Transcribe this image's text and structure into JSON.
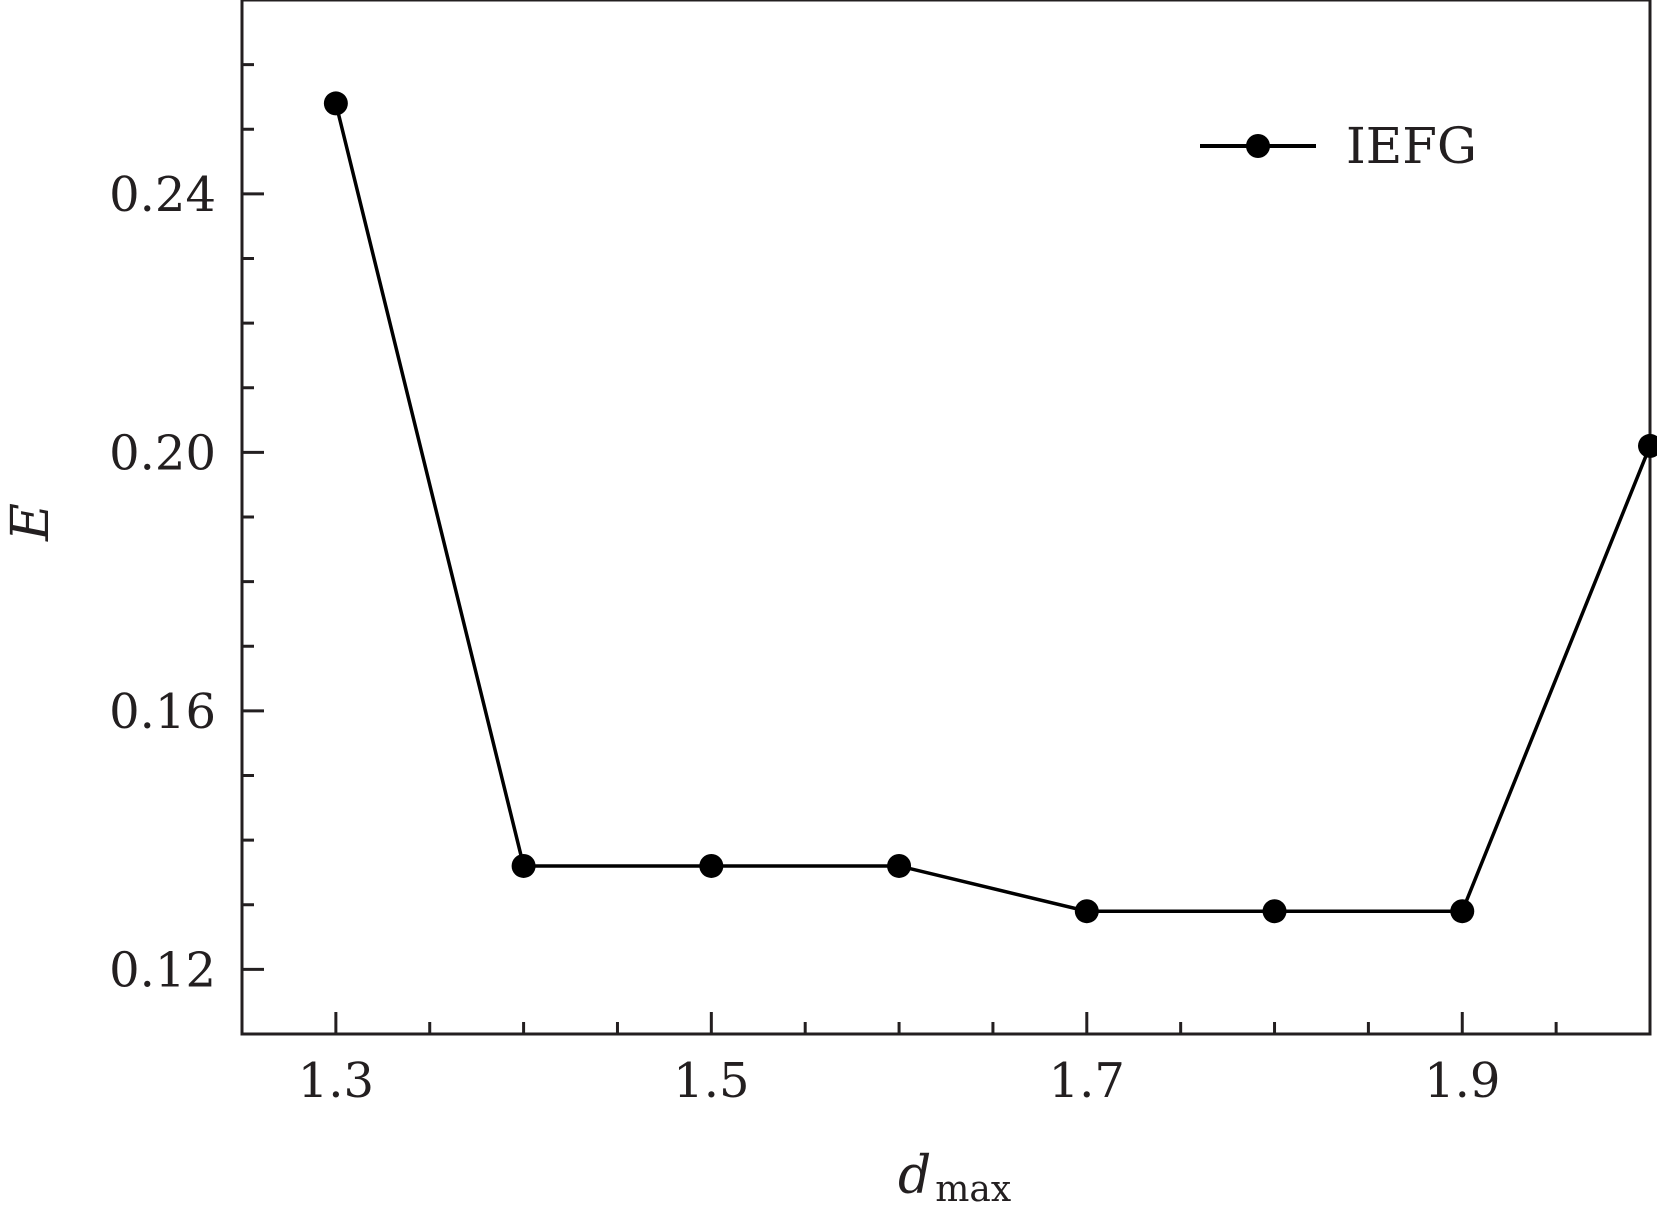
{
  "chart_data": {
    "type": "line",
    "xlabel": "d",
    "xlabel_subscript": "max",
    "ylabel": "E",
    "xlim": [
      1.25,
      2.0
    ],
    "ylim": [
      0.11,
      0.27
    ],
    "x_ticks": [
      1.3,
      1.5,
      1.7,
      1.9
    ],
    "x_tick_labels": [
      "1.3",
      "1.5",
      "1.7",
      "1.9"
    ],
    "x_minor_ticks": [
      1.35,
      1.4,
      1.45,
      1.55,
      1.6,
      1.65,
      1.75,
      1.8,
      1.85,
      1.95,
      2.0
    ],
    "y_ticks": [
      0.12,
      0.16,
      0.2,
      0.24
    ],
    "y_tick_labels": [
      "0.12",
      "0.16",
      "0.20",
      "0.24"
    ],
    "y_minor_ticks": [
      0.13,
      0.14,
      0.15,
      0.17,
      0.18,
      0.19,
      0.21,
      0.22,
      0.23,
      0.25,
      0.26
    ],
    "grid": false,
    "legend_position": "top-right",
    "colors": {
      "line": "#000000",
      "axis": "#231f20"
    },
    "series": [
      {
        "name": "IEFG",
        "x": [
          1.3,
          1.4,
          1.5,
          1.6,
          1.7,
          1.8,
          1.9,
          2.0
        ],
        "y": [
          0.254,
          0.136,
          0.136,
          0.136,
          0.129,
          0.129,
          0.129,
          0.201
        ]
      }
    ]
  }
}
